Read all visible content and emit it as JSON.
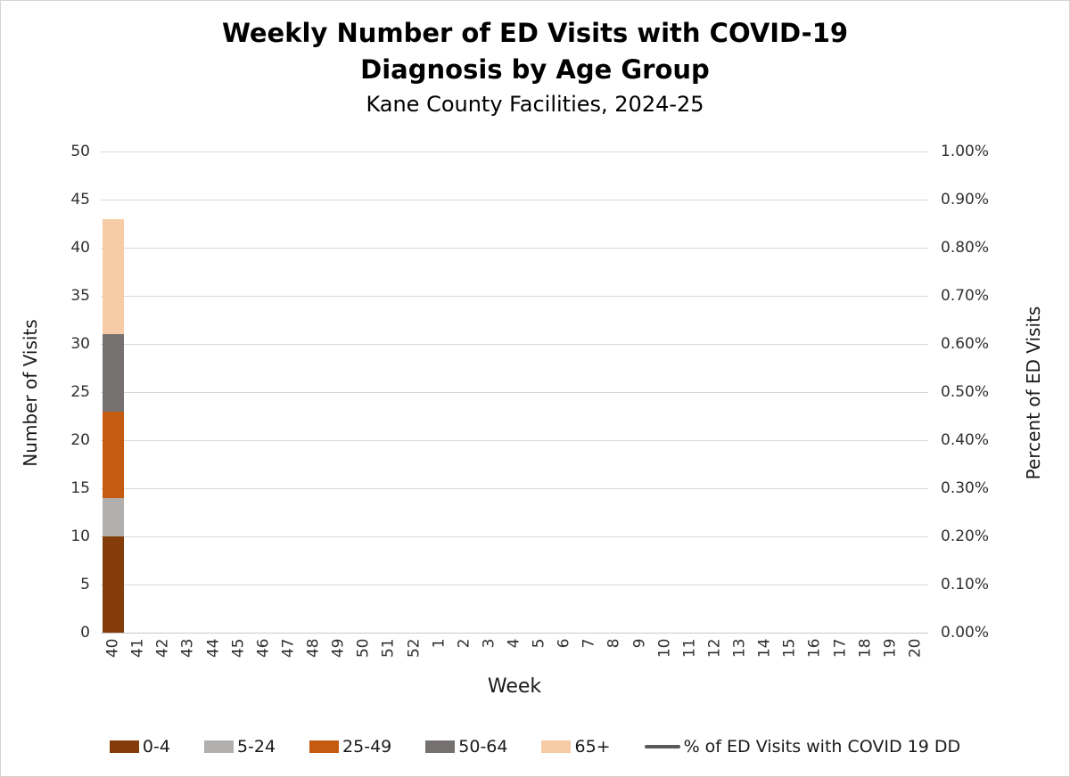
{
  "title": "Weekly Number of ED Visits with COVID-19 Diagnosis by Age Group",
  "subtitle": "Kane County Facilities, 2024-25",
  "chart_data": {
    "type": "bar",
    "stacked": true,
    "title": "Weekly Number of ED Visits with COVID-19 Diagnosis by Age Group",
    "subtitle": "Kane County Facilities, 2024-25",
    "xlabel": "Week",
    "ylabel_left": "Number of Visits",
    "ylabel_right": "Percent of ED Visits",
    "grid": true,
    "legend_position": "bottom",
    "y_left_axis": {
      "min": 0,
      "max": 50,
      "step": 5,
      "ticks": [
        0,
        5,
        10,
        15,
        20,
        25,
        30,
        35,
        40,
        45,
        50
      ]
    },
    "y_right_axis": {
      "min": "0.00%",
      "max": "1.00%",
      "ticks": [
        "0.00%",
        "0.10%",
        "0.20%",
        "0.30%",
        "0.40%",
        "0.50%",
        "0.60%",
        "0.70%",
        "0.80%",
        "0.90%",
        "1.00%"
      ]
    },
    "categories": [
      "40",
      "41",
      "42",
      "43",
      "44",
      "45",
      "46",
      "47",
      "48",
      "49",
      "50",
      "51",
      "52",
      "1",
      "2",
      "3",
      "4",
      "5",
      "6",
      "7",
      "8",
      "9",
      "10",
      "11",
      "12",
      "13",
      "14",
      "15",
      "16",
      "17",
      "18",
      "19",
      "20"
    ],
    "series": [
      {
        "name": "0-4",
        "color": "#853C0B",
        "values": [
          10,
          0,
          0,
          0,
          0,
          0,
          0,
          0,
          0,
          0,
          0,
          0,
          0,
          0,
          0,
          0,
          0,
          0,
          0,
          0,
          0,
          0,
          0,
          0,
          0,
          0,
          0,
          0,
          0,
          0,
          0,
          0,
          0
        ]
      },
      {
        "name": "5-24",
        "color": "#B2AFAF",
        "values": [
          4,
          0,
          0,
          0,
          0,
          0,
          0,
          0,
          0,
          0,
          0,
          0,
          0,
          0,
          0,
          0,
          0,
          0,
          0,
          0,
          0,
          0,
          0,
          0,
          0,
          0,
          0,
          0,
          0,
          0,
          0,
          0,
          0
        ]
      },
      {
        "name": "25-49",
        "color": "#C55A11",
        "values": [
          9,
          0,
          0,
          0,
          0,
          0,
          0,
          0,
          0,
          0,
          0,
          0,
          0,
          0,
          0,
          0,
          0,
          0,
          0,
          0,
          0,
          0,
          0,
          0,
          0,
          0,
          0,
          0,
          0,
          0,
          0,
          0,
          0
        ]
      },
      {
        "name": "50-64",
        "color": "#767171",
        "values": [
          8,
          0,
          0,
          0,
          0,
          0,
          0,
          0,
          0,
          0,
          0,
          0,
          0,
          0,
          0,
          0,
          0,
          0,
          0,
          0,
          0,
          0,
          0,
          0,
          0,
          0,
          0,
          0,
          0,
          0,
          0,
          0,
          0
        ]
      },
      {
        "name": "65+",
        "color": "#F7CBA6",
        "values": [
          12,
          0,
          0,
          0,
          0,
          0,
          0,
          0,
          0,
          0,
          0,
          0,
          0,
          0,
          0,
          0,
          0,
          0,
          0,
          0,
          0,
          0,
          0,
          0,
          0,
          0,
          0,
          0,
          0,
          0,
          0,
          0,
          0
        ]
      }
    ],
    "line_series": {
      "name": "% of ED Visits with COVID 19 DD",
      "color": "#595959"
    },
    "week_40_total": 43
  },
  "colors": {
    "gridline": "#d9d9d9",
    "axis_line": "#c9c9c9",
    "text": "#1a1a1a"
  }
}
